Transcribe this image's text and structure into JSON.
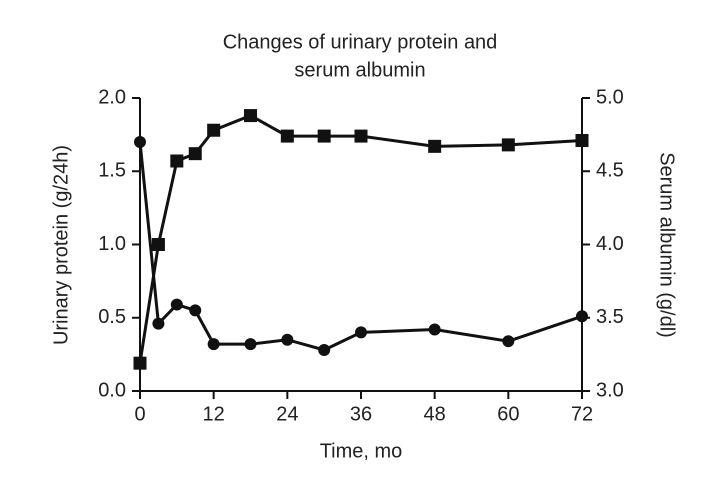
{
  "chart_data": {
    "type": "line",
    "title": [
      "Changes of urinary protein and",
      "serum albumin"
    ],
    "xlabel": "Time, mo",
    "ylabel": "Urinary protein (g/24h)",
    "y2label": "Serum albumin (g/dl)",
    "x": [
      0,
      3,
      6,
      9,
      12,
      18,
      24,
      30,
      36,
      48,
      60,
      72
    ],
    "series": [
      {
        "color": "#111111",
        "marker": "circle",
        "values": [
          1.7,
          0.46,
          0.59,
          0.55,
          0.32,
          0.32,
          0.35,
          0.28,
          0.4,
          0.42,
          0.34,
          0.51
        ]
      },
      {
        "color": "#111111",
        "marker": "square",
        "axis": "y2",
        "values": [
          3.19,
          4.0,
          4.57,
          4.62,
          4.78,
          4.88,
          4.74,
          4.74,
          4.74,
          4.67,
          4.68,
          4.71
        ]
      }
    ],
    "xlim": [
      0,
      72
    ],
    "xticks": [
      0,
      12,
      24,
      36,
      48,
      60,
      72
    ],
    "ylim": [
      0,
      2
    ],
    "yticks": [
      {
        "value": 0,
        "label": "0.0"
      },
      0.5,
      {
        "value": 1,
        "label": "1.0"
      },
      1.5,
      {
        "value": 2,
        "label": "2.0"
      }
    ],
    "y2lim": [
      3,
      5
    ],
    "y2ticks": [
      {
        "value": 3,
        "label": "3.0"
      },
      3.5,
      {
        "value": 4,
        "label": "4.0"
      },
      4.5,
      {
        "value": 5,
        "label": "5.0"
      }
    ],
    "grid": false
  }
}
